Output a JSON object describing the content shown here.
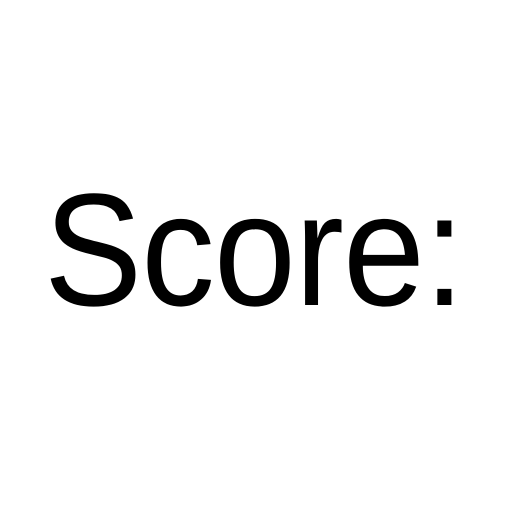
{
  "label": {
    "text": "Score:",
    "color": "#000000"
  },
  "background": "#ffffff"
}
